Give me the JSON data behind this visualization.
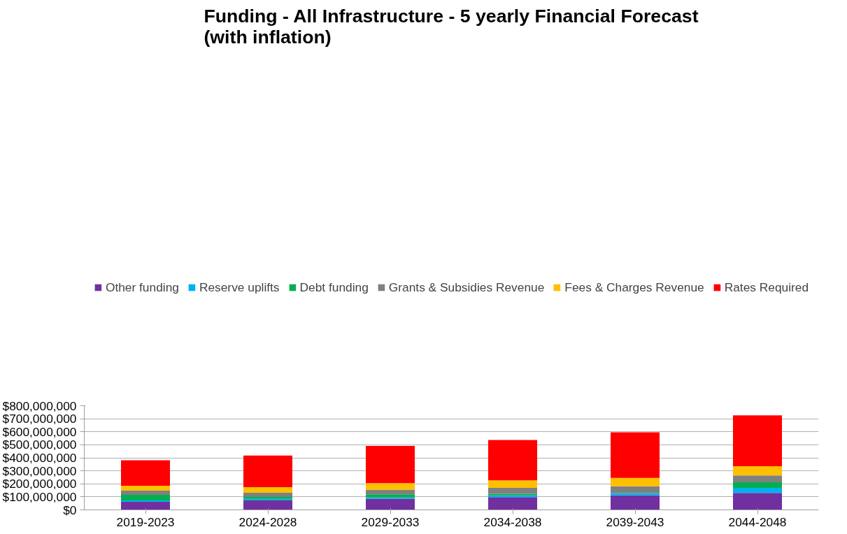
{
  "chart_data": {
    "type": "bar",
    "title": "Funding - All Infrastructure - 5 yearly Financial Forecast\n(with inflation)",
    "categories": [
      "2019-2023",
      "2024-2028",
      "2029-2033",
      "2034-2038",
      "2039-2043",
      "2044-2048"
    ],
    "stacked": true,
    "series": [
      {
        "name": "Other funding",
        "color": "#7030a0",
        "values": [
          62000000,
          73000000,
          86000000,
          98000000,
          111000000,
          130000000
        ]
      },
      {
        "name": "Reserve uplifts",
        "color": "#00b0f0",
        "values": [
          11000000,
          11000000,
          9000000,
          13000000,
          15000000,
          39000000
        ]
      },
      {
        "name": "Debt funding",
        "color": "#00b050",
        "values": [
          42000000,
          16000000,
          24000000,
          12000000,
          3000000,
          43000000
        ]
      },
      {
        "name": "Grants & Subsidies Revenue",
        "color": "#808080",
        "values": [
          32000000,
          31000000,
          36000000,
          46000000,
          52000000,
          52000000
        ]
      },
      {
        "name": "Fees & Charges Revenue",
        "color": "#ffc000",
        "values": [
          38000000,
          44000000,
          50000000,
          58000000,
          64000000,
          72000000
        ]
      },
      {
        "name": "Rates Required",
        "color": "#ff0000",
        "values": [
          196000000,
          243000000,
          286000000,
          310000000,
          351000000,
          390000000
        ]
      }
    ],
    "ylim": [
      0,
      800000000
    ],
    "yticks": [
      {
        "value": 0,
        "label": "$0"
      },
      {
        "value": 100000000,
        "label": "$100,000,000"
      },
      {
        "value": 200000000,
        "label": "$200,000,000"
      },
      {
        "value": 300000000,
        "label": "$300,000,000"
      },
      {
        "value": 400000000,
        "label": "$400,000,000"
      },
      {
        "value": 500000000,
        "label": "$500,000,000"
      },
      {
        "value": 600000000,
        "label": "$600,000,000"
      },
      {
        "value": 700000000,
        "label": "$700,000,000"
      },
      {
        "value": 800000000,
        "label": "$800,000,000"
      }
    ],
    "grid": "y",
    "legend": "top"
  }
}
